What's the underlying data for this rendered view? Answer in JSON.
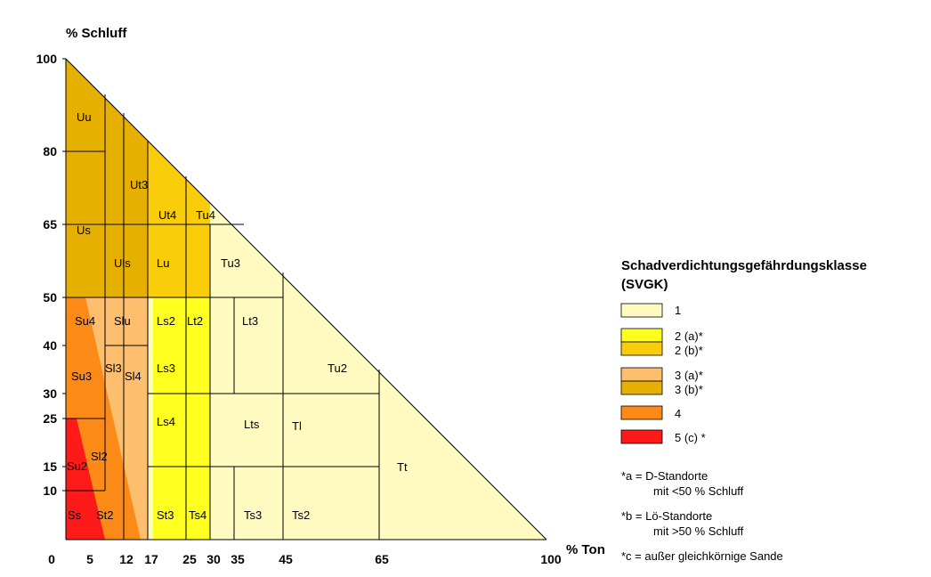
{
  "axes": {
    "x_title": "% Ton",
    "y_title": "% Schluff",
    "x_ticks": [
      "0",
      "5",
      "12",
      "17",
      "25",
      "30",
      "35",
      "45",
      "65",
      "100"
    ],
    "y_ticks": [
      "100",
      "80",
      "65",
      "50",
      "40",
      "30",
      "25",
      "15",
      "10"
    ]
  },
  "zones": [
    {
      "id": "Uu",
      "label": "Uu"
    },
    {
      "id": "Us",
      "label": "Us"
    },
    {
      "id": "Ut3",
      "label": "Ut3"
    },
    {
      "id": "Ut4",
      "label": "Ut4"
    },
    {
      "id": "Tu4",
      "label": "Tu4"
    },
    {
      "id": "Uls",
      "label": "Uls"
    },
    {
      "id": "Lu",
      "label": "Lu"
    },
    {
      "id": "Tu3",
      "label": "Tu3"
    },
    {
      "id": "Su4",
      "label": "Su4"
    },
    {
      "id": "Slu",
      "label": "Slu"
    },
    {
      "id": "Ls2",
      "label": "Ls2"
    },
    {
      "id": "Lt2",
      "label": "Lt2"
    },
    {
      "id": "Lt3",
      "label": "Lt3"
    },
    {
      "id": "Tu2",
      "label": "Tu2"
    },
    {
      "id": "Su3",
      "label": "Su3"
    },
    {
      "id": "Sl3",
      "label": "Sl3"
    },
    {
      "id": "Sl4",
      "label": "Sl4"
    },
    {
      "id": "Ls3",
      "label": "Ls3"
    },
    {
      "id": "Ls4",
      "label": "Ls4"
    },
    {
      "id": "Lts",
      "label": "Lts"
    },
    {
      "id": "Tl",
      "label": "Tl"
    },
    {
      "id": "Su2",
      "label": "Su2"
    },
    {
      "id": "Sl2",
      "label": "Sl2"
    },
    {
      "id": "Tt",
      "label": "Tt"
    },
    {
      "id": "Ss",
      "label": "Ss"
    },
    {
      "id": "St2",
      "label": "St2"
    },
    {
      "id": "St3",
      "label": "St3"
    },
    {
      "id": "Ts4",
      "label": "Ts4"
    },
    {
      "id": "Ts3",
      "label": "Ts3"
    },
    {
      "id": "Ts2",
      "label": "Ts2"
    }
  ],
  "legend": {
    "title_line1": "Schadverdichtungsgefährdungsklasse",
    "title_line2": "(SVGK)",
    "items": [
      {
        "label": "1",
        "color": "#fefac0"
      },
      {
        "label": "2  (a)*",
        "color": "#ffff20"
      },
      {
        "label": "2  (b)*",
        "color": "#f9cd0a"
      },
      {
        "label": "3  (a)*",
        "color": "#fdbe6e"
      },
      {
        "label": "3  (b)*",
        "color": "#e6b000"
      },
      {
        "label": "4",
        "color": "#fc8a16"
      },
      {
        "label": "5   (c) *",
        "color": "#ff1a1a"
      }
    ]
  },
  "notes": {
    "a_line1": "*a = D-Standorte",
    "a_line2": "mit <50 % Schluff",
    "b_line1": "*b = Lö-Standorte",
    "b_line2": "mit >50 % Schluff",
    "c_line1": "*c = außer gleichkörnige Sande"
  },
  "colors": {
    "class1": "#fefac0",
    "class2a": "#ffff20",
    "class2b": "#f9cd0a",
    "class3a": "#fdbe6e",
    "class3b": "#e6b000",
    "class4": "#fc8a16",
    "class5": "#ff1a1a"
  }
}
